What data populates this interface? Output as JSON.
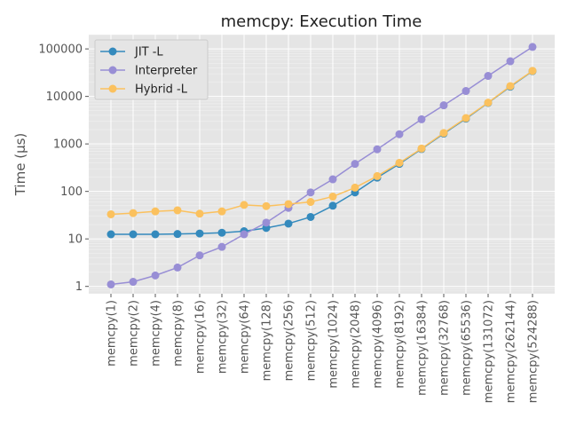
{
  "chart_data": {
    "type": "line",
    "title": "memcpy: Execution Time",
    "xlabel": "",
    "ylabel": "Time (µs)",
    "yscale": "log",
    "ylim": [
      0.7,
      200000
    ],
    "grid": true,
    "legend_position": "top-left",
    "categories": [
      "memcpy(1)",
      "memcpy(2)",
      "memcpy(4)",
      "memcpy(8)",
      "memcpy(16)",
      "memcpy(32)",
      "memcpy(64)",
      "memcpy(128)",
      "memcpy(256)",
      "memcpy(512)",
      "memcpy(1024)",
      "memcpy(2048)",
      "memcpy(4096)",
      "memcpy(8192)",
      "memcpy(16384)",
      "memcpy(32768)",
      "memcpy(65536)",
      "memcpy(131072)",
      "memcpy(262144)",
      "memcpy(524288)"
    ],
    "y_ticks": [
      {
        "value": 1,
        "label": "1"
      },
      {
        "value": 10,
        "label": "10"
      },
      {
        "value": 100,
        "label": "100"
      },
      {
        "value": 1000,
        "label": "1000"
      },
      {
        "value": 10000,
        "label": "10000"
      },
      {
        "value": 100000,
        "label": "100000"
      }
    ],
    "series": [
      {
        "name": "JIT -L",
        "color": "#348abd",
        "values": [
          12.5,
          12.5,
          12.5,
          12.7,
          13,
          13.5,
          14.5,
          17,
          21,
          29,
          50,
          95,
          195,
          380,
          780,
          1650,
          3400,
          7300,
          16000,
          34000
        ]
      },
      {
        "name": "Interpreter",
        "color": "#988ed5",
        "values": [
          1.1,
          1.25,
          1.7,
          2.5,
          4.5,
          6.8,
          12.5,
          22,
          45,
          95,
          180,
          380,
          770,
          1600,
          3300,
          6500,
          13000,
          27000,
          55000,
          110000
        ]
      },
      {
        "name": "Hybrid -L",
        "color": "#fbc15e",
        "values": [
          33,
          35,
          38,
          40,
          34,
          38,
          52,
          49,
          54,
          60,
          78,
          120,
          210,
          400,
          800,
          1700,
          3500,
          7400,
          16500,
          34500
        ]
      }
    ]
  }
}
